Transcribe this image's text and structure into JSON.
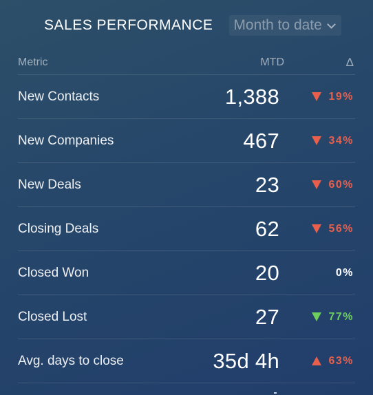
{
  "header": {
    "title": "SALES PERFORMANCE",
    "period_value": "Month to date",
    "chevron_icon": "chevron-down-icon"
  },
  "table": {
    "columns": {
      "metric": "Metric",
      "mtd": "MTD",
      "delta": "Δ"
    },
    "rows": [
      {
        "name": "New Contacts",
        "value": "1,388",
        "delta": "19%",
        "trend": "down",
        "status": "bad"
      },
      {
        "name": "New Companies",
        "value": "467",
        "delta": "34%",
        "trend": "down",
        "status": "bad"
      },
      {
        "name": "New Deals",
        "value": "23",
        "delta": "60%",
        "trend": "down",
        "status": "bad"
      },
      {
        "name": "Closing Deals",
        "value": "62",
        "delta": "56%",
        "trend": "down",
        "status": "bad"
      },
      {
        "name": "Closed Won",
        "value": "20",
        "delta": "0%",
        "trend": "none",
        "status": "neutral"
      },
      {
        "name": "Closed Lost",
        "value": "27",
        "delta": "77%",
        "trend": "down",
        "status": "good"
      },
      {
        "name": "Avg. days to close",
        "value": "35d 4h",
        "delta": "63%",
        "trend": "up",
        "status": "bad"
      }
    ]
  },
  "colors": {
    "bad": "#e8604c",
    "good": "#6fcf5c",
    "neutral": "#ffffff",
    "background": "#26466a"
  }
}
